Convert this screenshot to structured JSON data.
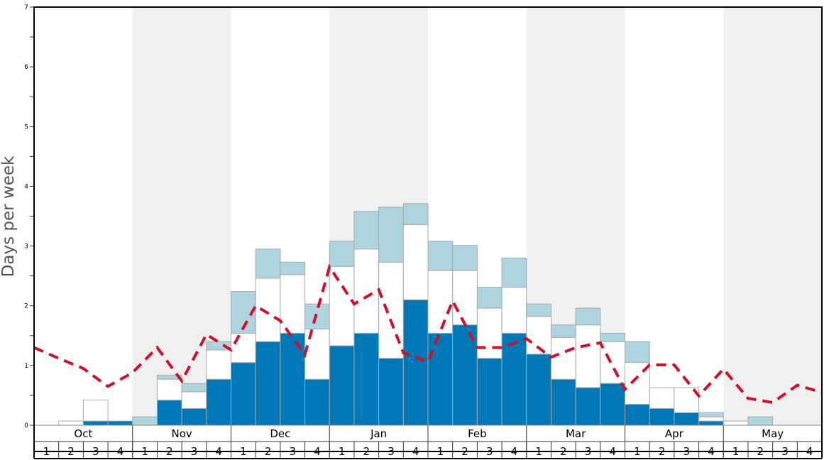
{
  "chart_data": {
    "type": "bar",
    "stacked": true,
    "ylabel": "Days per week",
    "ylim": [
      0,
      7
    ],
    "yticks": [
      "0",
      "1",
      "2",
      "3",
      "4",
      "5",
      "6",
      "7"
    ],
    "months": [
      "Oct",
      "Nov",
      "Dec",
      "Jan",
      "Feb",
      "Mar",
      "Apr",
      "May"
    ],
    "weeks": [
      "1",
      "2",
      "3",
      "4"
    ],
    "series": [
      {
        "name": "dark",
        "color": "#0077b6",
        "values": [
          0,
          0,
          0.07,
          0.07,
          0,
          0.42,
          0.28,
          0.77,
          1.05,
          1.4,
          1.54,
          0.77,
          1.33,
          1.54,
          1.12,
          2.1,
          1.54,
          1.68,
          1.12,
          1.54,
          1.19,
          0.77,
          0.63,
          0.7,
          0.35,
          0.28,
          0.21,
          0.07,
          0,
          0,
          0,
          0
        ]
      },
      {
        "name": "white",
        "color": "#ffffff",
        "values": [
          0,
          0.07,
          0.35,
          0,
          0,
          0.35,
          0.28,
          0.49,
          0.49,
          1.06,
          0.98,
          0.84,
          1.33,
          1.41,
          1.61,
          1.26,
          1.05,
          0.91,
          0.84,
          0.77,
          0.63,
          0.7,
          1.05,
          0.7,
          0.7,
          0.35,
          0.42,
          0.07,
          0.07,
          0,
          0,
          0
        ]
      },
      {
        "name": "light",
        "color": "#aed4e0",
        "values": [
          0,
          0,
          0,
          0,
          0.14,
          0.07,
          0.14,
          0.14,
          0.7,
          0.49,
          0.21,
          0.42,
          0.42,
          0.63,
          0.92,
          0.35,
          0.49,
          0.42,
          0.35,
          0.49,
          0.21,
          0.21,
          0.28,
          0.14,
          0.35,
          0,
          0,
          0.07,
          0,
          0.14,
          0,
          0
        ]
      }
    ],
    "line": {
      "name": "average",
      "color": "#d0102a",
      "values": [
        1.3,
        1.12,
        0.95,
        0.65,
        0.88,
        1.3,
        0.74,
        1.52,
        1.26,
        2.0,
        1.75,
        1.18,
        2.65,
        2.03,
        2.27,
        1.21,
        1.06,
        2.08,
        1.3,
        1.3,
        1.45,
        1.14,
        1.3,
        1.38,
        0.6,
        1.01,
        1.01,
        0.49,
        0.94,
        0.45,
        0.38,
        0.67,
        0.55
      ]
    },
    "shaded_months": [
      "Nov",
      "Jan",
      "Mar",
      "May"
    ],
    "shade_color": "#f0f0f0"
  }
}
